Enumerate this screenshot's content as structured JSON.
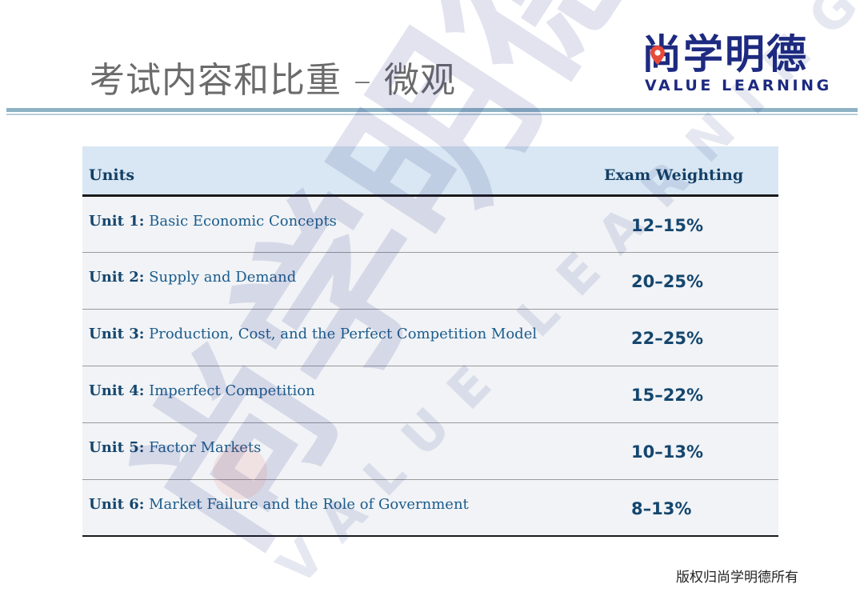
{
  "slide": {
    "title": "考试内容和比重 – 微观",
    "footer": "版权归尚学明德所有"
  },
  "logo": {
    "chinese": "尚学明德",
    "english": "VALUE LEARNING",
    "brand_color": "#1d2a80",
    "pin_color": "#e84a3a"
  },
  "watermark": {
    "chinese": "尚学明德",
    "english": "VALUE LEARNING"
  },
  "table": {
    "headers": {
      "units": "Units",
      "weighting": "Exam Weighting"
    },
    "rows": [
      {
        "unit": "Unit 1:",
        "topic": "Basic Economic Concepts",
        "weighting": "12–15%"
      },
      {
        "unit": "Unit 2:",
        "topic": "Supply and Demand",
        "weighting": "20–25%"
      },
      {
        "unit": "Unit 3:",
        "topic": "Production, Cost, and the Perfect Competition Model",
        "weighting": "22–25%"
      },
      {
        "unit": "Unit 4:",
        "topic": "Imperfect Competition",
        "weighting": "15–22%"
      },
      {
        "unit": "Unit 5:",
        "topic": "Factor Markets",
        "weighting": "10–13%"
      },
      {
        "unit": "Unit 6:",
        "topic": "Market Failure and the Role of Government",
        "weighting": "8–13%"
      }
    ]
  },
  "colors": {
    "header_bg": "#d8e7f3",
    "row_bg": "#f1f3f6",
    "text_blue": "#1b5c8c",
    "text_dark_blue": "#14466e",
    "title_gray": "#6b6b6b",
    "rule": "#8fb3c6"
  }
}
